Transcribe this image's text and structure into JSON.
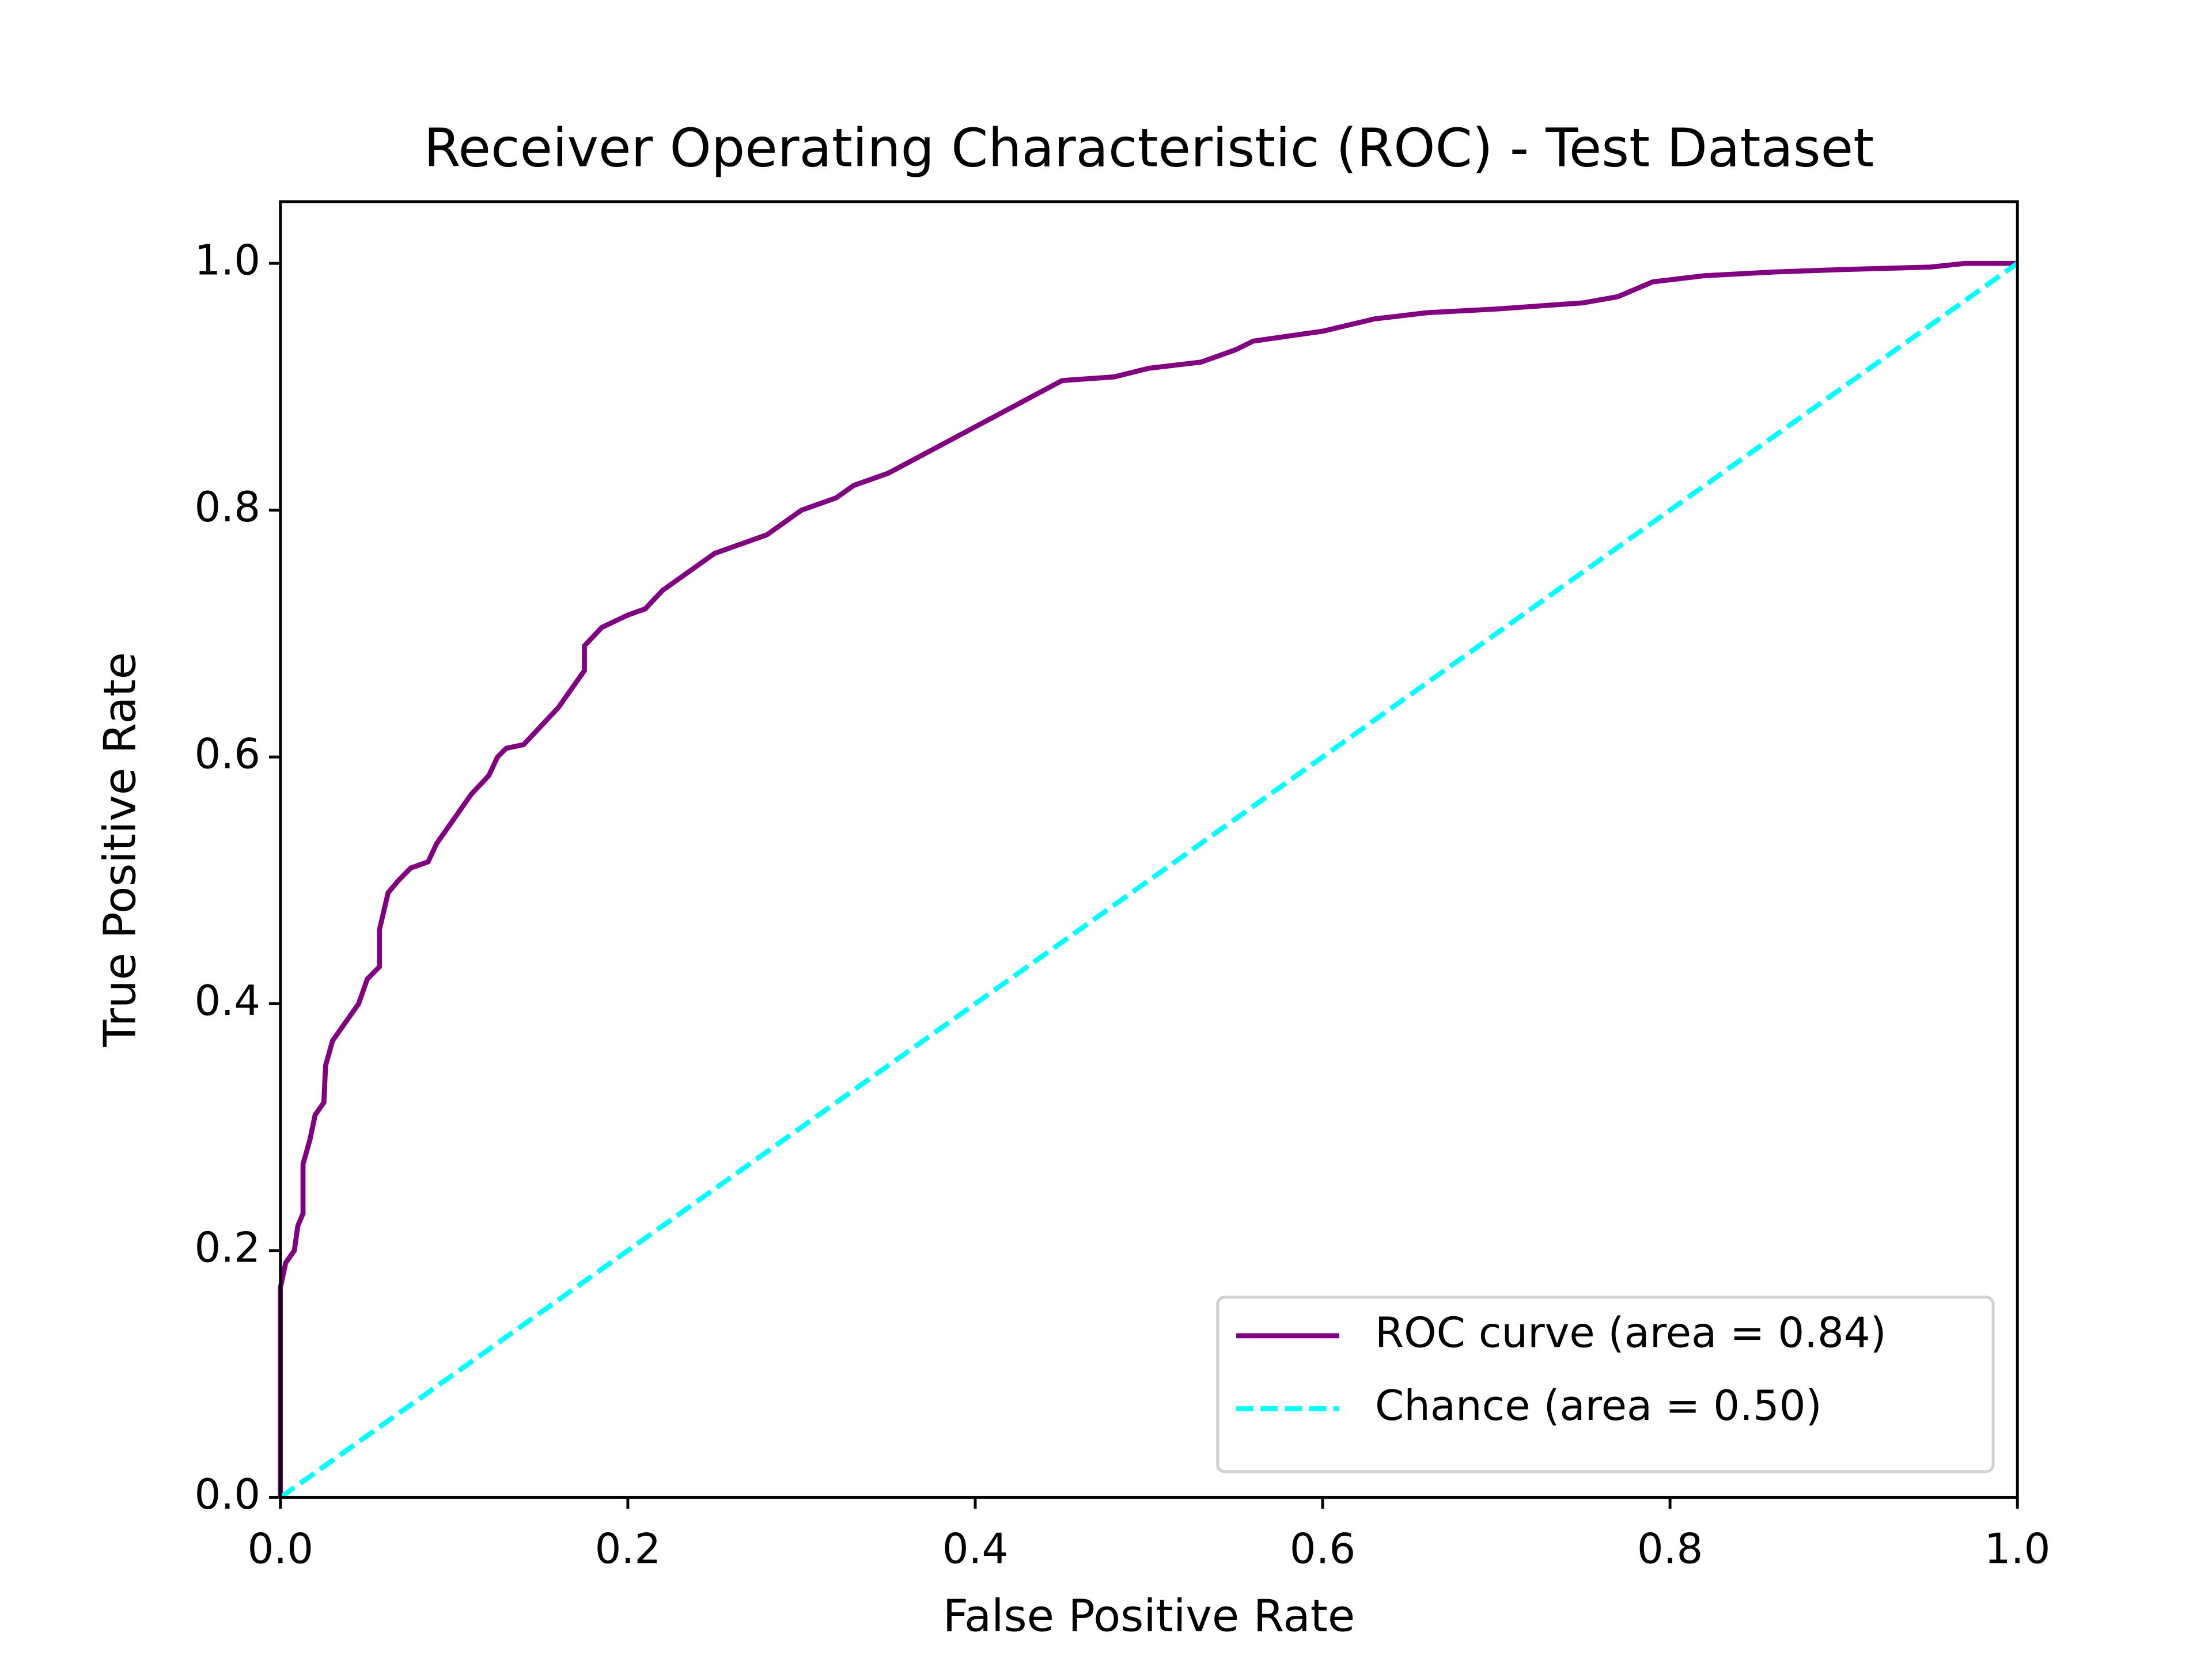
{
  "chart_data": {
    "type": "line",
    "title": "Receiver Operating Characteristic (ROC) - Test Dataset",
    "x_label": "False Positive Rate",
    "y_label": "True Positive Rate",
    "xlim": [
      0,
      1
    ],
    "ylim": [
      0,
      1.05
    ],
    "xticks": [
      {
        "value": 0,
        "label": "0.0"
      },
      {
        "value": 0.2,
        "label": "0.2"
      },
      {
        "value": 0.4,
        "label": "0.4"
      },
      {
        "value": 0.6,
        "label": "0.6"
      },
      {
        "value": 0.8,
        "label": "0.8"
      },
      {
        "value": 1,
        "label": "1.0"
      }
    ],
    "yticks": [
      {
        "value": 0,
        "label": "0.0"
      },
      {
        "value": 0.2,
        "label": "0.2"
      },
      {
        "value": 0.4,
        "label": "0.4"
      },
      {
        "value": 0.6,
        "label": "0.6"
      },
      {
        "value": 0.8,
        "label": "0.8"
      },
      {
        "value": 1,
        "label": "1.0"
      }
    ],
    "legend": "lower right",
    "series": [
      {
        "name": "ROC curve (area = 0.84)",
        "color": "#800080",
        "style": "solid",
        "x": [
          0,
          0,
          0.003,
          0.008,
          0.01,
          0.013,
          0.013,
          0.017,
          0.02,
          0.025,
          0.026,
          0.03,
          0.035,
          0.04,
          0.045,
          0.05,
          0.057,
          0.057,
          0.062,
          0.068,
          0.075,
          0.085,
          0.09,
          0.1,
          0.11,
          0.12,
          0.125,
          0.13,
          0.14,
          0.15,
          0.16,
          0.17,
          0.175,
          0.175,
          0.185,
          0.2,
          0.21,
          0.22,
          0.235,
          0.25,
          0.27,
          0.28,
          0.3,
          0.32,
          0.33,
          0.35,
          0.37,
          0.39,
          0.41,
          0.43,
          0.45,
          0.48,
          0.5,
          0.53,
          0.55,
          0.56,
          0.6,
          0.63,
          0.66,
          0.7,
          0.75,
          0.77,
          0.79,
          0.82,
          0.86,
          0.9,
          0.95,
          0.97,
          1
        ],
        "values": [
          0,
          0.17,
          0.19,
          0.2,
          0.22,
          0.23,
          0.27,
          0.29,
          0.31,
          0.32,
          0.35,
          0.37,
          0.38,
          0.39,
          0.4,
          0.42,
          0.43,
          0.46,
          0.49,
          0.5,
          0.51,
          0.515,
          0.53,
          0.55,
          0.57,
          0.585,
          0.6,
          0.607,
          0.61,
          0.625,
          0.64,
          0.66,
          0.67,
          0.69,
          0.705,
          0.715,
          0.72,
          0.735,
          0.75,
          0.765,
          0.775,
          0.78,
          0.8,
          0.81,
          0.82,
          0.83,
          0.845,
          0.86,
          0.875,
          0.89,
          0.905,
          0.908,
          0.915,
          0.92,
          0.93,
          0.937,
          0.945,
          0.955,
          0.96,
          0.963,
          0.968,
          0.973,
          0.985,
          0.99,
          0.993,
          0.995,
          0.997,
          1,
          1
        ]
      },
      {
        "name": "Chance (area = 0.50)",
        "color": "#00ffff",
        "style": "dashed",
        "x": [
          0,
          1
        ],
        "values": [
          0,
          1
        ]
      }
    ]
  }
}
